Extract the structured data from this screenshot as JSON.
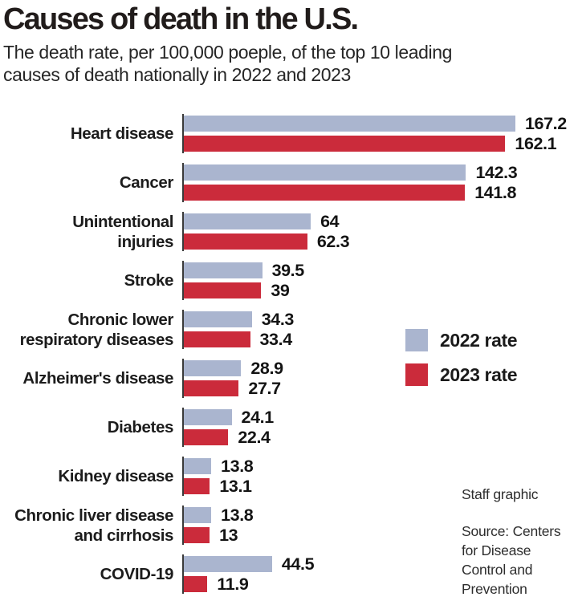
{
  "header": {
    "title": "Causes of death in the U.S.",
    "subtitle_line1": "The death rate, per 100,000 poeple, of the top 10 leading",
    "subtitle_line2": "causes of death nationally in 2022 and 2023"
  },
  "chart_data": {
    "type": "bar",
    "orientation": "horizontal",
    "unit": "death rate per 100,000 people",
    "xlim": [
      0,
      170
    ],
    "grid": false,
    "legend_position": "right-middle",
    "categories": [
      "Heart disease",
      "Cancer",
      "Unintentional injuries",
      "Stroke",
      "Chronic lower respiratory diseases",
      "Alzheimer's disease",
      "Diabetes",
      "Kidney disease",
      "Chronic liver disease and cirrhosis",
      "COVID-19"
    ],
    "series": [
      {
        "name": "2022 rate",
        "color": "#aab5cf",
        "values": [
          167.2,
          142.3,
          64,
          39.5,
          34.3,
          28.9,
          24.1,
          13.8,
          13.8,
          44.5
        ]
      },
      {
        "name": "2023 rate",
        "color": "#cb2b3b",
        "values": [
          162.1,
          141.8,
          62.3,
          39,
          33.4,
          27.7,
          22.4,
          13.1,
          13,
          11.9
        ]
      }
    ],
    "rows": [
      {
        "label_lines": [
          "Heart disease"
        ],
        "v2022": 167.2,
        "v2023": 162.1,
        "d2022": "167.2",
        "d2023": "162.1"
      },
      {
        "label_lines": [
          "Cancer"
        ],
        "v2022": 142.3,
        "v2023": 141.8,
        "d2022": "142.3",
        "d2023": "141.8"
      },
      {
        "label_lines": [
          "Unintentional",
          "injuries"
        ],
        "v2022": 64,
        "v2023": 62.3,
        "d2022": "64",
        "d2023": "62.3"
      },
      {
        "label_lines": [
          "Stroke"
        ],
        "v2022": 39.5,
        "v2023": 39,
        "d2022": "39.5",
        "d2023": "39"
      },
      {
        "label_lines": [
          "Chronic lower",
          "respiratory diseases"
        ],
        "v2022": 34.3,
        "v2023": 33.4,
        "d2022": "34.3",
        "d2023": "33.4"
      },
      {
        "label_lines": [
          "Alzheimer's disease"
        ],
        "v2022": 28.9,
        "v2023": 27.7,
        "d2022": "28.9",
        "d2023": "27.7"
      },
      {
        "label_lines": [
          "Diabetes"
        ],
        "v2022": 24.1,
        "v2023": 22.4,
        "d2022": "24.1",
        "d2023": "22.4"
      },
      {
        "label_lines": [
          "Kidney disease"
        ],
        "v2022": 13.8,
        "v2023": 13.1,
        "d2022": "13.8",
        "d2023": "13.1"
      },
      {
        "label_lines": [
          "Chronic liver disease",
          "and cirrhosis"
        ],
        "v2022": 13.8,
        "v2023": 13,
        "d2022": "13.8",
        "d2023": "13"
      },
      {
        "label_lines": [
          "COVID-19"
        ],
        "v2022": 44.5,
        "v2023": 11.9,
        "d2022": "44.5",
        "d2023": "11.9"
      }
    ]
  },
  "legend": {
    "items": [
      {
        "label": "2022 rate",
        "color": "#aab5cf"
      },
      {
        "label": "2023 rate",
        "color": "#cb2b3b"
      }
    ]
  },
  "credits": {
    "staff": "Staff graphic",
    "source_lines": [
      "Source: Centers",
      "for Disease",
      "Control and",
      "Prevention"
    ]
  },
  "colors": {
    "bar_2022": "#aab5cf",
    "bar_2023": "#cb2b3b",
    "axis_tick": "#3a3a3a",
    "title_text": "#211c1b"
  }
}
